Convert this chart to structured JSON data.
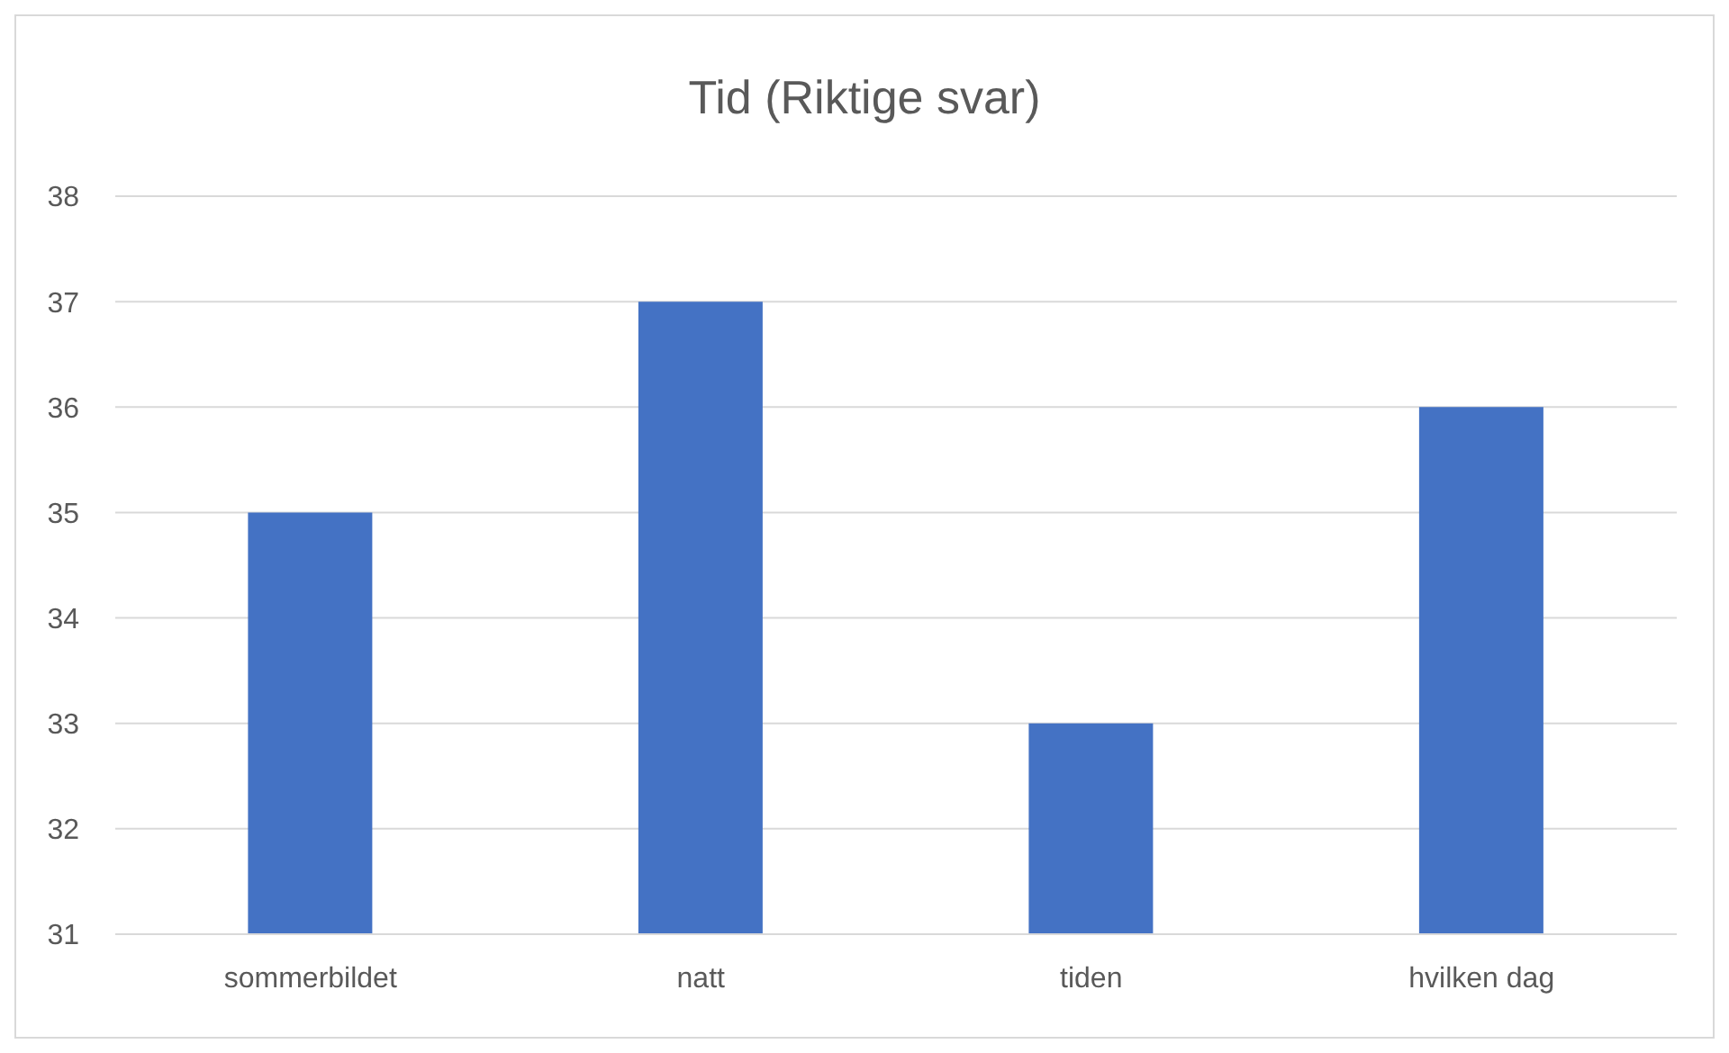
{
  "chart_data": {
    "type": "bar",
    "title": "Tid (Riktige svar)",
    "categories": [
      "sommerbildet",
      "natt",
      "tiden",
      "hvilken dag"
    ],
    "values": [
      35,
      37,
      33,
      36
    ],
    "color": "#4472c4",
    "ylim": [
      31,
      38
    ],
    "yticks": [
      31,
      32,
      33,
      34,
      35,
      36,
      37,
      38
    ],
    "grid": "y"
  }
}
